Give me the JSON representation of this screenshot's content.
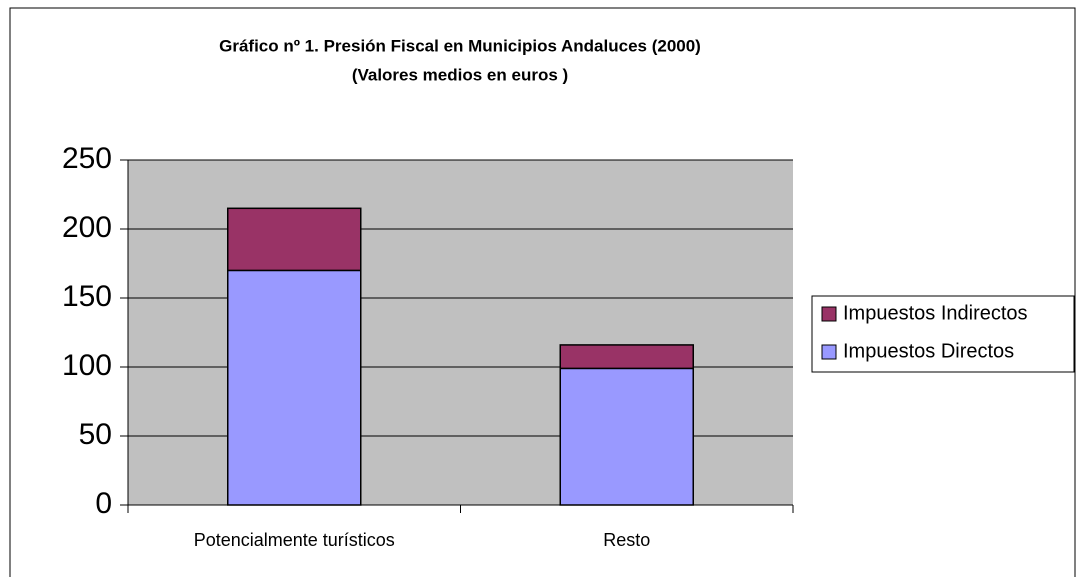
{
  "chart_data": {
    "type": "stacked_bar",
    "title": "Gráfico nº 1. Presión Fiscal en Municipios Andaluces (2000)",
    "subtitle": "(Valores medios en euros )",
    "categories": [
      "Potencialmente turísticos",
      "Resto"
    ],
    "series": [
      {
        "name": "Impuestos Directos",
        "color": "#9999ff",
        "values": [
          170,
          99
        ]
      },
      {
        "name": "Impuestos Indirectos",
        "color": "#993366",
        "values": [
          45,
          17
        ]
      }
    ],
    "ylim": [
      0,
      250
    ],
    "yticks": [
      0,
      50,
      100,
      150,
      200,
      250
    ],
    "grid": true,
    "legend": "right",
    "plot_background": "#c0c0c0"
  }
}
